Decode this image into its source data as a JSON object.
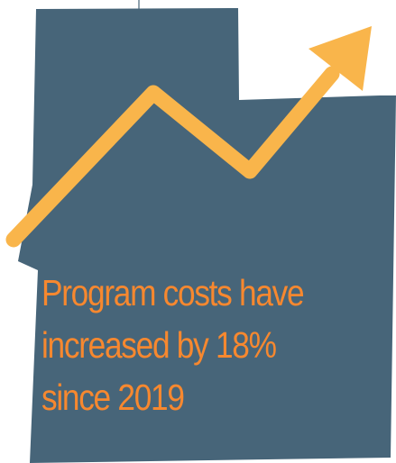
{
  "colors": {
    "state_fill": "#476579",
    "arrow": "#f9b54b",
    "text": "#f7882f",
    "border_tick": "#476579"
  },
  "graphic": {
    "state_shape": "utah-state-icon",
    "trend": "rising-zigzag-arrow"
  },
  "caption": {
    "line1": "Program costs have",
    "line2": "increased by 18%",
    "line3": "since 2019"
  }
}
